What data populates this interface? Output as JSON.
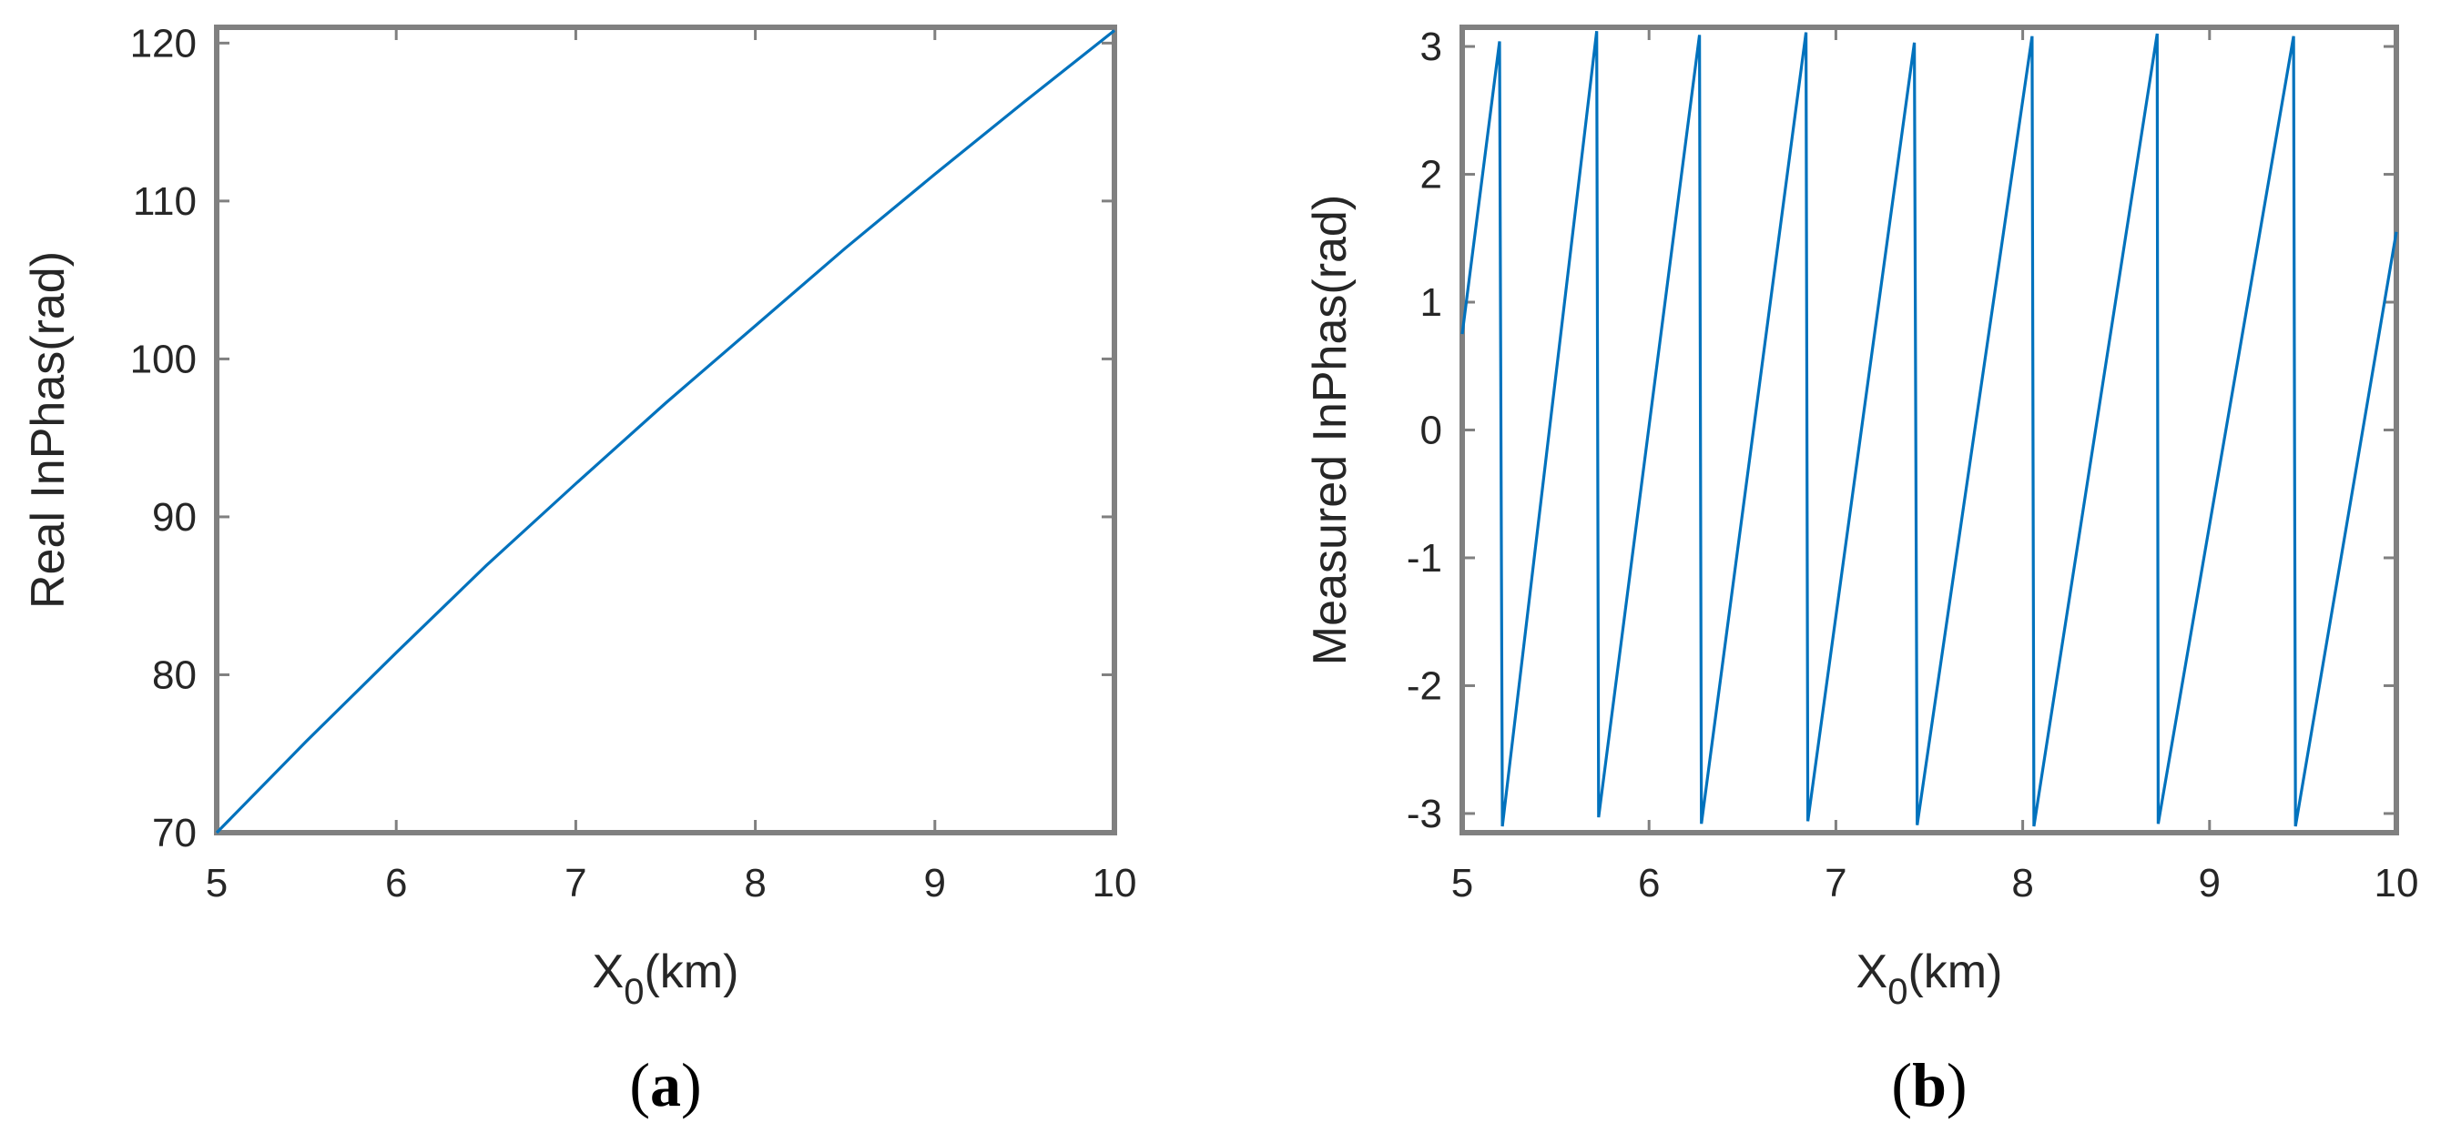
{
  "colors": {
    "series": "#0072BD",
    "axes": "#808080",
    "text": "#262626"
  },
  "chart_data": [
    {
      "type": "line",
      "panel_label": "a",
      "xlabel": {
        "main": "X",
        "sub": "0",
        "suffix": "(km)"
      },
      "ylabel": "Real InPhas(rad)",
      "xlim": [
        5,
        10
      ],
      "ylim": [
        70,
        121
      ],
      "xticks": [
        "5",
        "6",
        "7",
        "8",
        "9",
        "10"
      ],
      "yticks": [
        "70",
        "80",
        "90",
        "100",
        "110",
        "120"
      ],
      "grid": false,
      "series": [
        {
          "x": [
            5,
            5.5,
            6,
            6.5,
            7,
            7.5,
            8,
            8.5,
            9,
            9.5,
            10
          ],
          "y": [
            70,
            75.8,
            81.4,
            86.9,
            92.1,
            97.2,
            102.1,
            107.0,
            111.7,
            116.3,
            120.8
          ]
        }
      ]
    },
    {
      "type": "line",
      "panel_label": "b",
      "xlabel": {
        "main": "X",
        "sub": "0",
        "suffix": "(km)"
      },
      "ylabel": "Measured InPhas(rad)",
      "xlim": [
        5,
        10
      ],
      "ylim": [
        -3.15,
        3.15
      ],
      "xticks": [
        "5",
        "6",
        "7",
        "8",
        "9",
        "10"
      ],
      "yticks": [
        "-3",
        "-2",
        "-1",
        "0",
        "1",
        "2",
        "3"
      ],
      "grid": false,
      "series": [
        {
          "x": [
            5.0,
            5.2,
            5.215,
            5.72,
            5.73,
            6.27,
            6.28,
            6.84,
            6.85,
            7.42,
            7.435,
            8.05,
            8.06,
            8.72,
            8.725,
            9.45,
            9.46,
            10.0
          ],
          "y": [
            0.75,
            3.04,
            -3.1,
            3.12,
            -3.03,
            3.09,
            -3.08,
            3.11,
            -3.06,
            3.03,
            -3.09,
            3.08,
            -3.1,
            3.1,
            -3.08,
            3.08,
            -3.1,
            1.55
          ]
        }
      ]
    }
  ]
}
